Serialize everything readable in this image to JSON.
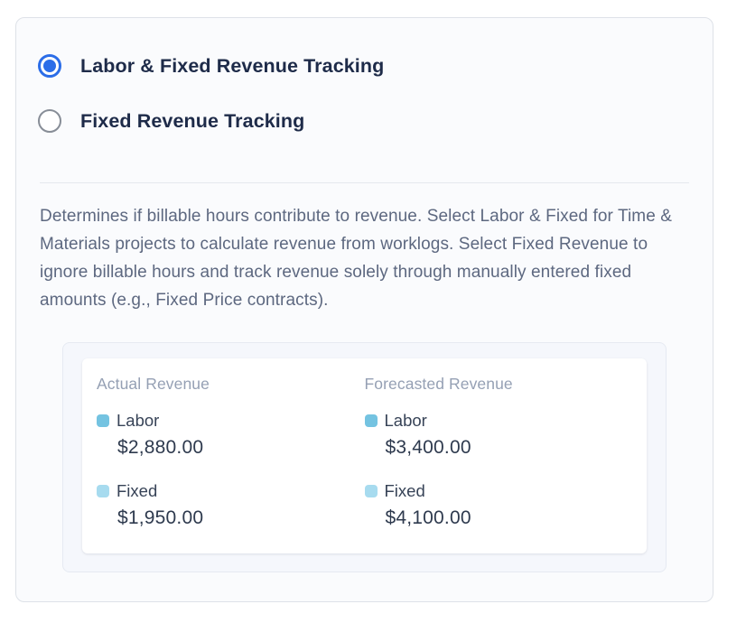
{
  "radio_group": {
    "options": [
      {
        "label": "Labor & Fixed Revenue Tracking",
        "selected": "true"
      },
      {
        "label": "Fixed Revenue Tracking",
        "selected": "false"
      }
    ]
  },
  "description": "Determines if billable hours contribute to revenue. Select Labor & Fixed for Time & Materials projects to calculate revenue from worklogs. Select Fixed Revenue to ignore billable hours and track revenue solely through manually entered fixed amounts (e.g., Fixed Price contracts).",
  "preview": {
    "columns": [
      {
        "title": "Actual Revenue",
        "metrics": [
          {
            "label": "Labor",
            "value": "$2,880.00"
          },
          {
            "label": "Fixed",
            "value": "$1,950.00"
          }
        ]
      },
      {
        "title": "Forecasted Revenue",
        "metrics": [
          {
            "label": "Labor",
            "value": "$3,400.00"
          },
          {
            "label": "Fixed",
            "value": "$4,100.00"
          }
        ]
      }
    ]
  },
  "colors": {
    "accent_blue": "#2b6de8",
    "labor_swatch": "#74c3e1",
    "fixed_swatch": "#a7dbef"
  }
}
